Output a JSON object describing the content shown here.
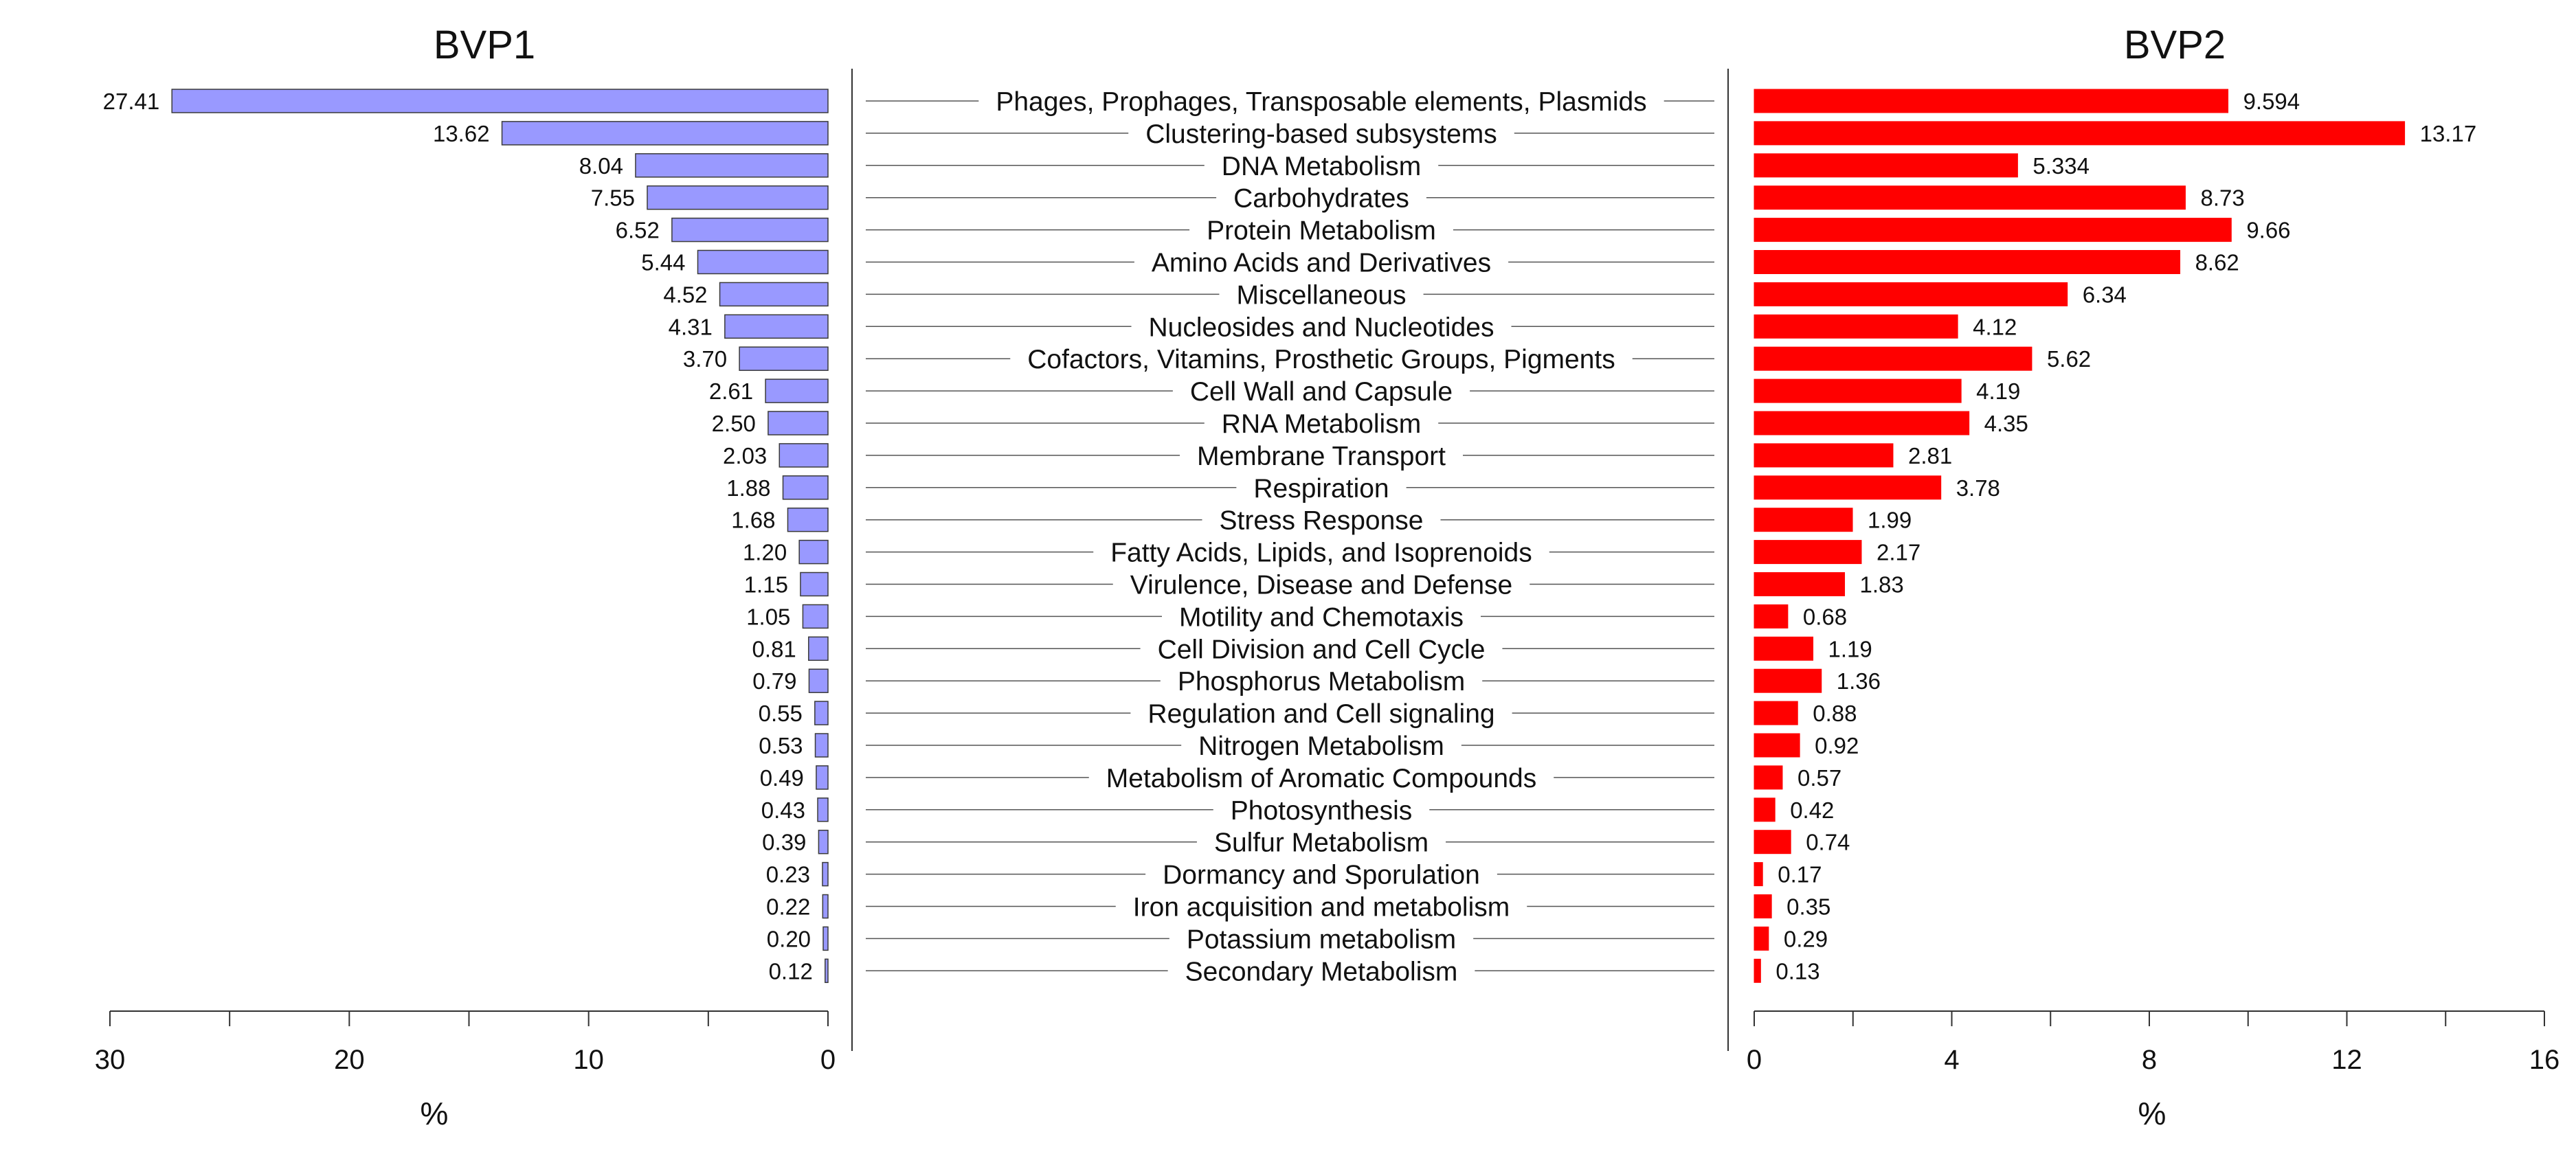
{
  "chart_data": [
    {
      "type": "bar",
      "orientation": "horizontal",
      "direction": "right-to-left",
      "title": "BVP1",
      "xlabel": "%",
      "xlim": [
        0,
        30
      ],
      "xticks": [
        30,
        20,
        10,
        0
      ],
      "bar_color": "#9999ff",
      "categories": [
        "Phages, Prophages, Transposable elements, Plasmids",
        "Clustering-based subsystems",
        "DNA Metabolism",
        "Carbohydrates",
        "Protein Metabolism",
        "Amino Acids and Derivatives",
        "Miscellaneous",
        "Nucleosides and Nucleotides",
        "Cofactors, Vitamins, Prosthetic Groups, Pigments",
        "Cell Wall and Capsule",
        "RNA Metabolism",
        "Membrane Transport",
        "Respiration",
        "Stress Response",
        "Fatty Acids, Lipids, and Isoprenoids",
        "Virulence, Disease and Defense",
        "Motility and Chemotaxis",
        "Cell Division and Cell Cycle",
        "Phosphorus Metabolism",
        "Regulation and Cell signaling",
        "Nitrogen Metabolism",
        "Metabolism of Aromatic Compounds",
        "Photosynthesis",
        "Sulfur Metabolism",
        "Dormancy and Sporulation",
        "Iron acquisition and metabolism",
        "Potassium metabolism",
        "Secondary Metabolism"
      ],
      "values": [
        27.41,
        13.62,
        8.04,
        7.55,
        6.52,
        5.44,
        4.52,
        4.31,
        3.7,
        2.61,
        2.5,
        2.03,
        1.88,
        1.68,
        1.2,
        1.15,
        1.05,
        0.81,
        0.79,
        0.55,
        0.53,
        0.49,
        0.43,
        0.39,
        0.23,
        0.22,
        0.2,
        0.12
      ],
      "value_labels": [
        "27.41",
        "13.62",
        "8.04",
        "7.55",
        "6.52",
        "5.44",
        "4.52",
        "4.31",
        "3.70",
        "2.61",
        "2.50",
        "2.03",
        "1.88",
        "1.68",
        "1.20",
        "1.15",
        "1.05",
        "0.81",
        "0.79",
        "0.55",
        "0.53",
        "0.49",
        "0.43",
        "0.39",
        "0.23",
        "0.22",
        "0.20",
        "0.12"
      ]
    },
    {
      "type": "bar",
      "orientation": "horizontal",
      "direction": "left-to-right",
      "title": "BVP2",
      "xlabel": "%",
      "xlim": [
        0,
        16
      ],
      "xticks": [
        0,
        4,
        8,
        12,
        16
      ],
      "bar_color": "#ff0000",
      "values": [
        9.594,
        13.17,
        5.334,
        8.73,
        9.66,
        8.62,
        6.34,
        4.12,
        5.62,
        4.19,
        4.35,
        2.81,
        3.78,
        1.99,
        2.17,
        1.83,
        0.68,
        1.19,
        1.36,
        0.88,
        0.92,
        0.57,
        0.42,
        0.74,
        0.17,
        0.35,
        0.29,
        0.13
      ],
      "value_labels": [
        "9.594",
        "13.17",
        "5.334",
        "8.73",
        "9.66",
        "8.62",
        "6.34",
        "4.12",
        "5.62",
        "4.19",
        "4.35",
        "2.81",
        "3.78",
        "1.99",
        "2.17",
        "1.83",
        "0.68",
        "1.19",
        "1.36",
        "0.88",
        "0.92",
        "0.57",
        "0.42",
        "0.74",
        "0.17",
        "0.35",
        "0.29",
        "0.13"
      ]
    }
  ]
}
